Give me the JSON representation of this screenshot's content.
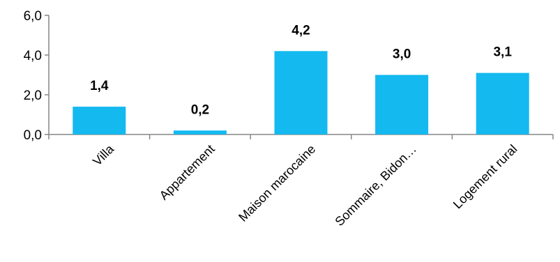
{
  "chart_data": {
    "type": "bar",
    "categories": [
      "Villa",
      "Appartement",
      "Maison marocaine",
      "Sommaire, Bidon…",
      "Logement rural"
    ],
    "values": [
      1.4,
      0.2,
      4.2,
      3.0,
      3.1
    ],
    "value_labels": [
      "1,4",
      "0,2",
      "4,2",
      "3,0",
      "3,1"
    ],
    "y_ticks": [
      {
        "value": 0,
        "label": "0,0"
      },
      {
        "value": 2,
        "label": "2,0"
      },
      {
        "value": 4,
        "label": "4,0"
      },
      {
        "value": 6,
        "label": "6,0"
      }
    ],
    "ylim": [
      0,
      6
    ],
    "title": "",
    "xlabel": "",
    "ylabel": "",
    "grid": false,
    "legend": "none",
    "bar_color": "#14B9F0"
  }
}
